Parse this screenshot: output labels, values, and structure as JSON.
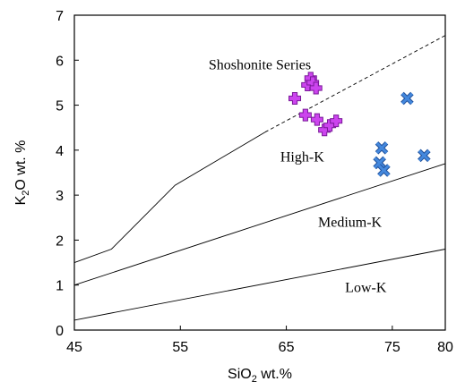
{
  "chart_data": {
    "type": "scatter",
    "xlabel": {
      "base": "SiO",
      "sub": "2",
      "rest": " wt.%"
    },
    "ylabel": {
      "base": "K",
      "sub": "2",
      "rest": "O wt. %"
    },
    "xlim": [
      45,
      80
    ],
    "ylim": [
      0,
      7
    ],
    "x_ticks": [
      "45",
      "55",
      "65",
      "75",
      "80"
    ],
    "y_ticks": [
      "0",
      "1",
      "2",
      "3",
      "4",
      "5",
      "6",
      "7"
    ],
    "grid": false,
    "boundaries": [
      {
        "style": "solid",
        "points": [
          [
            45,
            1.5
          ],
          [
            48.5,
            1.8
          ],
          [
            54.5,
            3.22
          ],
          [
            63,
            4.4
          ]
        ]
      },
      {
        "style": "dashed",
        "points": [
          [
            63,
            4.4
          ],
          [
            80,
            6.55
          ]
        ]
      },
      {
        "style": "solid",
        "points": [
          [
            45,
            1.0
          ],
          [
            80,
            3.7
          ]
        ]
      },
      {
        "style": "solid",
        "points": [
          [
            45,
            0.22
          ],
          [
            80,
            1.8
          ]
        ]
      }
    ],
    "field_labels": [
      {
        "text": "Shoshonite Series",
        "x": 62.5,
        "y": 5.8
      },
      {
        "text": "High-K",
        "x": 66.5,
        "y": 3.75
      },
      {
        "text": "Medium-K",
        "x": 71,
        "y": 2.3
      },
      {
        "text": "Low-K",
        "x": 72.5,
        "y": 0.85
      }
    ],
    "series": [
      {
        "marker": "plus",
        "color": "#cc44ee",
        "points": [
          [
            65.8,
            5.15
          ],
          [
            67.0,
            5.45
          ],
          [
            67.3,
            5.6
          ],
          [
            67.5,
            5.5
          ],
          [
            67.8,
            5.38
          ],
          [
            66.8,
            4.78
          ],
          [
            67.9,
            4.68
          ],
          [
            68.6,
            4.45
          ],
          [
            69.1,
            4.55
          ],
          [
            69.7,
            4.65
          ]
        ]
      },
      {
        "marker": "x",
        "color": "#4488dd",
        "points": [
          [
            76.4,
            5.15
          ],
          [
            74.0,
            4.05
          ],
          [
            73.8,
            3.72
          ],
          [
            74.2,
            3.55
          ],
          [
            78.0,
            3.88
          ]
        ]
      }
    ]
  }
}
